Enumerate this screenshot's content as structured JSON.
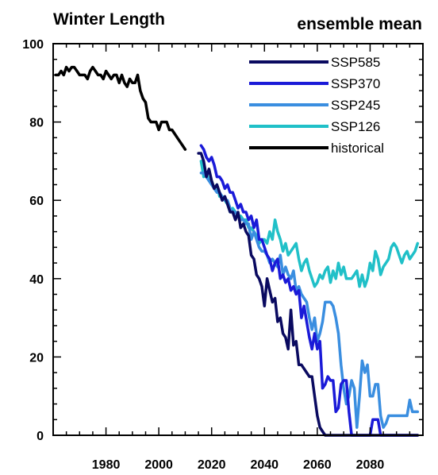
{
  "chart_data": {
    "type": "line",
    "title": "Winter Length",
    "subtitle": "ensemble mean",
    "xlabel": "",
    "ylabel": "",
    "xlim": [
      1960,
      2100
    ],
    "ylim": [
      0,
      100
    ],
    "x_ticks": [
      1980,
      2000,
      2020,
      2040,
      2060,
      2080
    ],
    "y_ticks": [
      0,
      20,
      40,
      60,
      80,
      100
    ],
    "legend_position": "top-right",
    "series": [
      {
        "name": "SSP585",
        "color": "#0a0a60",
        "x": [
          2015,
          2016,
          2017,
          2018,
          2019,
          2020,
          2021,
          2022,
          2023,
          2024,
          2025,
          2026,
          2027,
          2028,
          2029,
          2030,
          2031,
          2032,
          2033,
          2034,
          2035,
          2036,
          2037,
          2038,
          2039,
          2040,
          2041,
          2042,
          2043,
          2044,
          2045,
          2046,
          2047,
          2048,
          2049,
          2050,
          2051,
          2052,
          2053,
          2054,
          2055,
          2056,
          2057,
          2058,
          2059,
          2060,
          2061,
          2062,
          2063,
          2064,
          2065,
          2066,
          2067,
          2068,
          2069,
          2070,
          2071,
          2072,
          2073,
          2074,
          2075,
          2076,
          2077,
          2078,
          2079,
          2080,
          2081,
          2082,
          2083,
          2084,
          2085,
          2086,
          2087,
          2088,
          2089,
          2090,
          2091,
          2092,
          2093,
          2094,
          2095,
          2096,
          2097,
          2098
        ],
        "y": [
          72,
          72,
          70,
          66,
          68,
          65,
          63,
          64,
          62,
          60,
          61,
          59,
          57,
          57,
          55,
          57,
          53,
          54,
          52,
          51,
          46,
          45,
          41,
          40,
          38,
          33,
          40,
          37,
          34,
          35,
          29,
          30,
          26,
          25,
          22,
          32,
          23,
          24,
          18,
          18,
          17,
          16,
          15,
          15,
          10,
          5,
          2,
          1,
          0,
          0,
          0,
          0,
          0,
          0,
          0,
          0,
          0,
          0,
          0,
          0,
          0,
          0,
          0,
          0,
          0,
          0,
          0,
          0,
          0,
          0,
          0,
          0,
          0,
          0,
          0,
          0,
          0,
          0,
          0,
          0,
          0,
          0,
          0,
          0
        ]
      },
      {
        "name": "SSP370",
        "color": "#1a1ad8",
        "x": [
          2016,
          2017,
          2018,
          2019,
          2020,
          2021,
          2022,
          2023,
          2024,
          2025,
          2026,
          2027,
          2028,
          2029,
          2030,
          2031,
          2032,
          2033,
          2034,
          2035,
          2036,
          2037,
          2038,
          2039,
          2040,
          2041,
          2042,
          2043,
          2044,
          2045,
          2046,
          2047,
          2048,
          2049,
          2050,
          2051,
          2052,
          2053,
          2054,
          2055,
          2056,
          2057,
          2058,
          2059,
          2060,
          2061,
          2062,
          2063,
          2064,
          2065,
          2066,
          2067,
          2068,
          2069,
          2070,
          2071,
          2072,
          2073,
          2074,
          2075,
          2076,
          2077,
          2078,
          2079,
          2080,
          2081,
          2082,
          2083,
          2084,
          2085,
          2086,
          2087,
          2088,
          2089,
          2090,
          2091,
          2092,
          2093,
          2094,
          2095,
          2096,
          2097,
          2098
        ],
        "y": [
          74,
          73,
          71,
          70,
          71,
          69,
          66,
          66,
          65,
          63,
          64,
          62,
          62,
          60,
          58,
          59,
          57,
          57,
          55,
          56,
          53,
          55,
          50,
          50,
          48,
          46,
          45,
          42,
          44,
          45,
          40,
          41,
          39,
          40,
          37,
          38,
          36,
          37,
          30,
          33,
          29,
          25,
          22,
          26,
          22,
          24,
          12,
          13,
          15,
          14,
          14,
          6,
          7,
          13,
          14,
          14,
          6,
          0,
          0,
          0,
          0,
          0,
          0,
          0,
          0,
          4,
          4,
          4,
          0,
          0,
          0,
          0,
          0,
          0,
          0,
          0,
          0,
          0,
          0,
          0,
          0,
          0,
          0
        ]
      },
      {
        "name": "SSP245",
        "color": "#3a8ee0",
        "x": [
          2016,
          2017,
          2018,
          2019,
          2020,
          2021,
          2022,
          2023,
          2024,
          2025,
          2026,
          2027,
          2028,
          2029,
          2030,
          2031,
          2032,
          2033,
          2034,
          2035,
          2036,
          2037,
          2038,
          2039,
          2040,
          2041,
          2042,
          2043,
          2044,
          2045,
          2046,
          2047,
          2048,
          2049,
          2050,
          2051,
          2052,
          2053,
          2054,
          2055,
          2056,
          2057,
          2058,
          2059,
          2060,
          2061,
          2062,
          2063,
          2064,
          2065,
          2066,
          2067,
          2068,
          2069,
          2070,
          2071,
          2072,
          2073,
          2074,
          2075,
          2076,
          2077,
          2078,
          2079,
          2080,
          2081,
          2082,
          2083,
          2084,
          2085,
          2086,
          2087,
          2088,
          2089,
          2090,
          2091,
          2092,
          2093,
          2094,
          2095,
          2096,
          2097,
          2098
        ],
        "y": [
          67,
          67,
          66,
          65,
          64,
          63,
          62,
          62,
          61,
          60,
          60,
          58,
          57,
          57,
          56,
          55,
          55,
          54,
          54,
          50,
          52,
          50,
          48,
          47,
          47,
          46,
          44,
          45,
          44,
          43,
          46,
          41,
          43,
          41,
          40,
          42,
          37,
          38,
          36,
          35,
          34,
          30,
          27,
          30,
          24,
          26,
          29,
          34,
          34,
          34,
          33,
          30,
          26,
          18,
          12,
          8,
          10,
          14,
          12,
          2,
          10,
          19,
          16,
          18,
          10,
          10,
          13,
          13,
          5,
          2,
          3,
          5,
          5,
          5,
          5,
          5,
          5,
          5,
          5,
          9,
          6,
          6,
          6
        ]
      },
      {
        "name": "SSP126",
        "color": "#20c0c8",
        "x": [
          2016,
          2017,
          2018,
          2019,
          2020,
          2021,
          2022,
          2023,
          2024,
          2025,
          2026,
          2027,
          2028,
          2029,
          2030,
          2031,
          2032,
          2033,
          2034,
          2035,
          2036,
          2037,
          2038,
          2039,
          2040,
          2041,
          2042,
          2043,
          2044,
          2045,
          2046,
          2047,
          2048,
          2049,
          2050,
          2051,
          2052,
          2053,
          2054,
          2055,
          2056,
          2057,
          2058,
          2059,
          2060,
          2061,
          2062,
          2063,
          2064,
          2065,
          2066,
          2067,
          2068,
          2069,
          2070,
          2071,
          2072,
          2073,
          2074,
          2075,
          2076,
          2077,
          2078,
          2079,
          2080,
          2081,
          2082,
          2083,
          2084,
          2085,
          2086,
          2087,
          2088,
          2089,
          2090,
          2091,
          2092,
          2093,
          2094,
          2095,
          2096,
          2097,
          2098
        ],
        "y": [
          70,
          66,
          67,
          65,
          65,
          63,
          64,
          61,
          61,
          60,
          59,
          57,
          58,
          57,
          56,
          56,
          55,
          55,
          53,
          53,
          52,
          51,
          49,
          50,
          50,
          49,
          52,
          50,
          55,
          52,
          50,
          47,
          49,
          46,
          47,
          48,
          49,
          45,
          42,
          44,
          45,
          42,
          40,
          38,
          39,
          41,
          40,
          42,
          43,
          39,
          42,
          40,
          44,
          41,
          43,
          40,
          40,
          40,
          41,
          42,
          38,
          41,
          38,
          40,
          44,
          42,
          47,
          45,
          41,
          43,
          44,
          45,
          48,
          49,
          48,
          46,
          44,
          46,
          47,
          45,
          46,
          47,
          49
        ]
      },
      {
        "name": "historical",
        "color": "#000000",
        "x": [
          1961,
          1962,
          1963,
          1964,
          1965,
          1966,
          1967,
          1968,
          1969,
          1970,
          1971,
          1972,
          1973,
          1974,
          1975,
          1976,
          1977,
          1978,
          1979,
          1980,
          1981,
          1982,
          1983,
          1984,
          1985,
          1986,
          1987,
          1988,
          1989,
          1990,
          1991,
          1992,
          1993,
          1994,
          1995,
          1996,
          1997,
          1998,
          1999,
          2000,
          2001,
          2002,
          2003,
          2004,
          2005,
          2006,
          2007,
          2008,
          2009,
          2010
        ],
        "y": [
          92,
          92,
          93,
          92,
          94,
          93,
          94,
          94,
          93,
          92,
          92,
          92,
          91,
          93,
          94,
          93,
          92,
          92,
          91,
          93,
          92,
          91,
          92,
          92,
          90,
          92,
          90,
          89,
          91,
          90,
          90,
          92,
          88,
          86,
          85,
          81,
          80,
          80,
          80,
          78,
          80,
          80,
          80,
          78,
          78,
          77,
          76,
          75,
          74,
          73
        ]
      }
    ]
  }
}
